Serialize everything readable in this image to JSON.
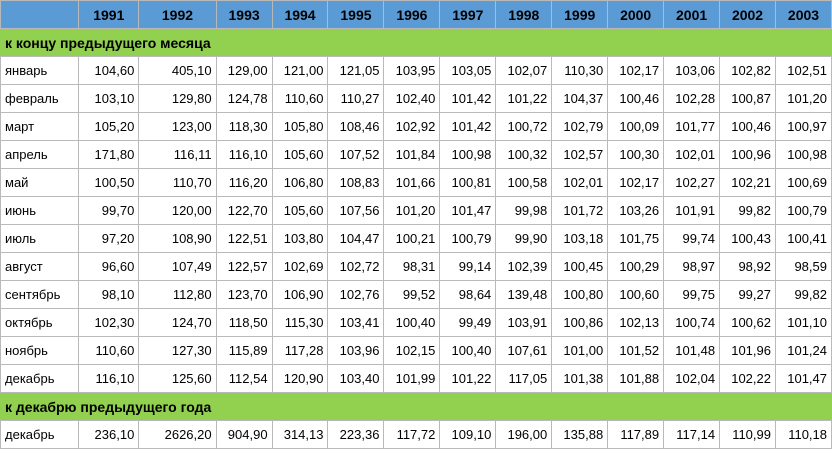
{
  "table": {
    "years": [
      "1991",
      "1992",
      "1993",
      "1994",
      "1995",
      "1996",
      "1997",
      "1998",
      "1999",
      "2000",
      "2001",
      "2002",
      "2003"
    ],
    "section1_title": "к концу предыдущего месяца",
    "section1_rows": [
      {
        "label": "январь",
        "values": [
          "104,60",
          "405,10",
          "129,00",
          "121,00",
          "121,05",
          "103,95",
          "103,05",
          "102,07",
          "110,30",
          "102,17",
          "103,06",
          "102,82",
          "102,51"
        ]
      },
      {
        "label": "февраль",
        "values": [
          "103,10",
          "129,80",
          "124,78",
          "110,60",
          "110,27",
          "102,40",
          "101,42",
          "101,22",
          "104,37",
          "100,46",
          "102,28",
          "100,87",
          "101,20"
        ]
      },
      {
        "label": "март",
        "values": [
          "105,20",
          "123,00",
          "118,30",
          "105,80",
          "108,46",
          "102,92",
          "101,42",
          "100,72",
          "102,79",
          "100,09",
          "101,77",
          "100,46",
          "100,97"
        ]
      },
      {
        "label": "апрель",
        "values": [
          "171,80",
          "116,11",
          "116,10",
          "105,60",
          "107,52",
          "101,84",
          "100,98",
          "100,32",
          "102,57",
          "100,30",
          "102,01",
          "100,96",
          "100,98"
        ]
      },
      {
        "label": "май",
        "values": [
          "100,50",
          "110,70",
          "116,20",
          "106,80",
          "108,83",
          "101,66",
          "100,81",
          "100,58",
          "102,01",
          "102,17",
          "102,27",
          "102,21",
          "100,69"
        ]
      },
      {
        "label": "июнь",
        "values": [
          "99,70",
          "120,00",
          "122,70",
          "105,60",
          "107,56",
          "101,20",
          "101,47",
          "99,98",
          "101,72",
          "103,26",
          "101,91",
          "99,82",
          "100,79"
        ]
      },
      {
        "label": "июль",
        "values": [
          "97,20",
          "108,90",
          "122,51",
          "103,80",
          "104,47",
          "100,21",
          "100,79",
          "99,90",
          "103,18",
          "101,75",
          "99,74",
          "100,43",
          "100,41"
        ]
      },
      {
        "label": "август",
        "values": [
          "96,60",
          "107,49",
          "122,57",
          "102,69",
          "102,72",
          "98,31",
          "99,14",
          "102,39",
          "100,45",
          "100,29",
          "98,97",
          "98,92",
          "98,59"
        ]
      },
      {
        "label": "сентябрь",
        "values": [
          "98,10",
          "112,80",
          "123,70",
          "106,90",
          "102,76",
          "99,52",
          "98,64",
          "139,48",
          "100,80",
          "100,60",
          "99,75",
          "99,27",
          "99,82"
        ]
      },
      {
        "label": "октябрь",
        "values": [
          "102,30",
          "124,70",
          "118,50",
          "115,30",
          "103,41",
          "100,40",
          "99,49",
          "103,91",
          "100,86",
          "102,13",
          "100,74",
          "100,62",
          "101,10"
        ]
      },
      {
        "label": "ноябрь",
        "values": [
          "110,60",
          "127,30",
          "115,89",
          "117,28",
          "103,96",
          "102,15",
          "100,40",
          "107,61",
          "101,00",
          "101,52",
          "101,48",
          "101,96",
          "101,24"
        ]
      },
      {
        "label": "декабрь",
        "values": [
          "116,10",
          "125,60",
          "112,54",
          "120,90",
          "103,40",
          "101,99",
          "101,22",
          "117,05",
          "101,38",
          "101,88",
          "102,04",
          "102,22",
          "101,47"
        ]
      }
    ],
    "section2_title": "к декабрю предыдущего года",
    "section2_rows": [
      {
        "label": "декабрь",
        "values": [
          "236,10",
          "2626,20",
          "904,90",
          "314,13",
          "223,36",
          "117,72",
          "109,10",
          "196,00",
          "135,88",
          "117,89",
          "117,14",
          "110,99",
          "110,18"
        ]
      }
    ]
  },
  "colors": {
    "header_bg": "#5b9bd5",
    "section_bg": "#92d050",
    "grid": "#b9b9b9"
  }
}
